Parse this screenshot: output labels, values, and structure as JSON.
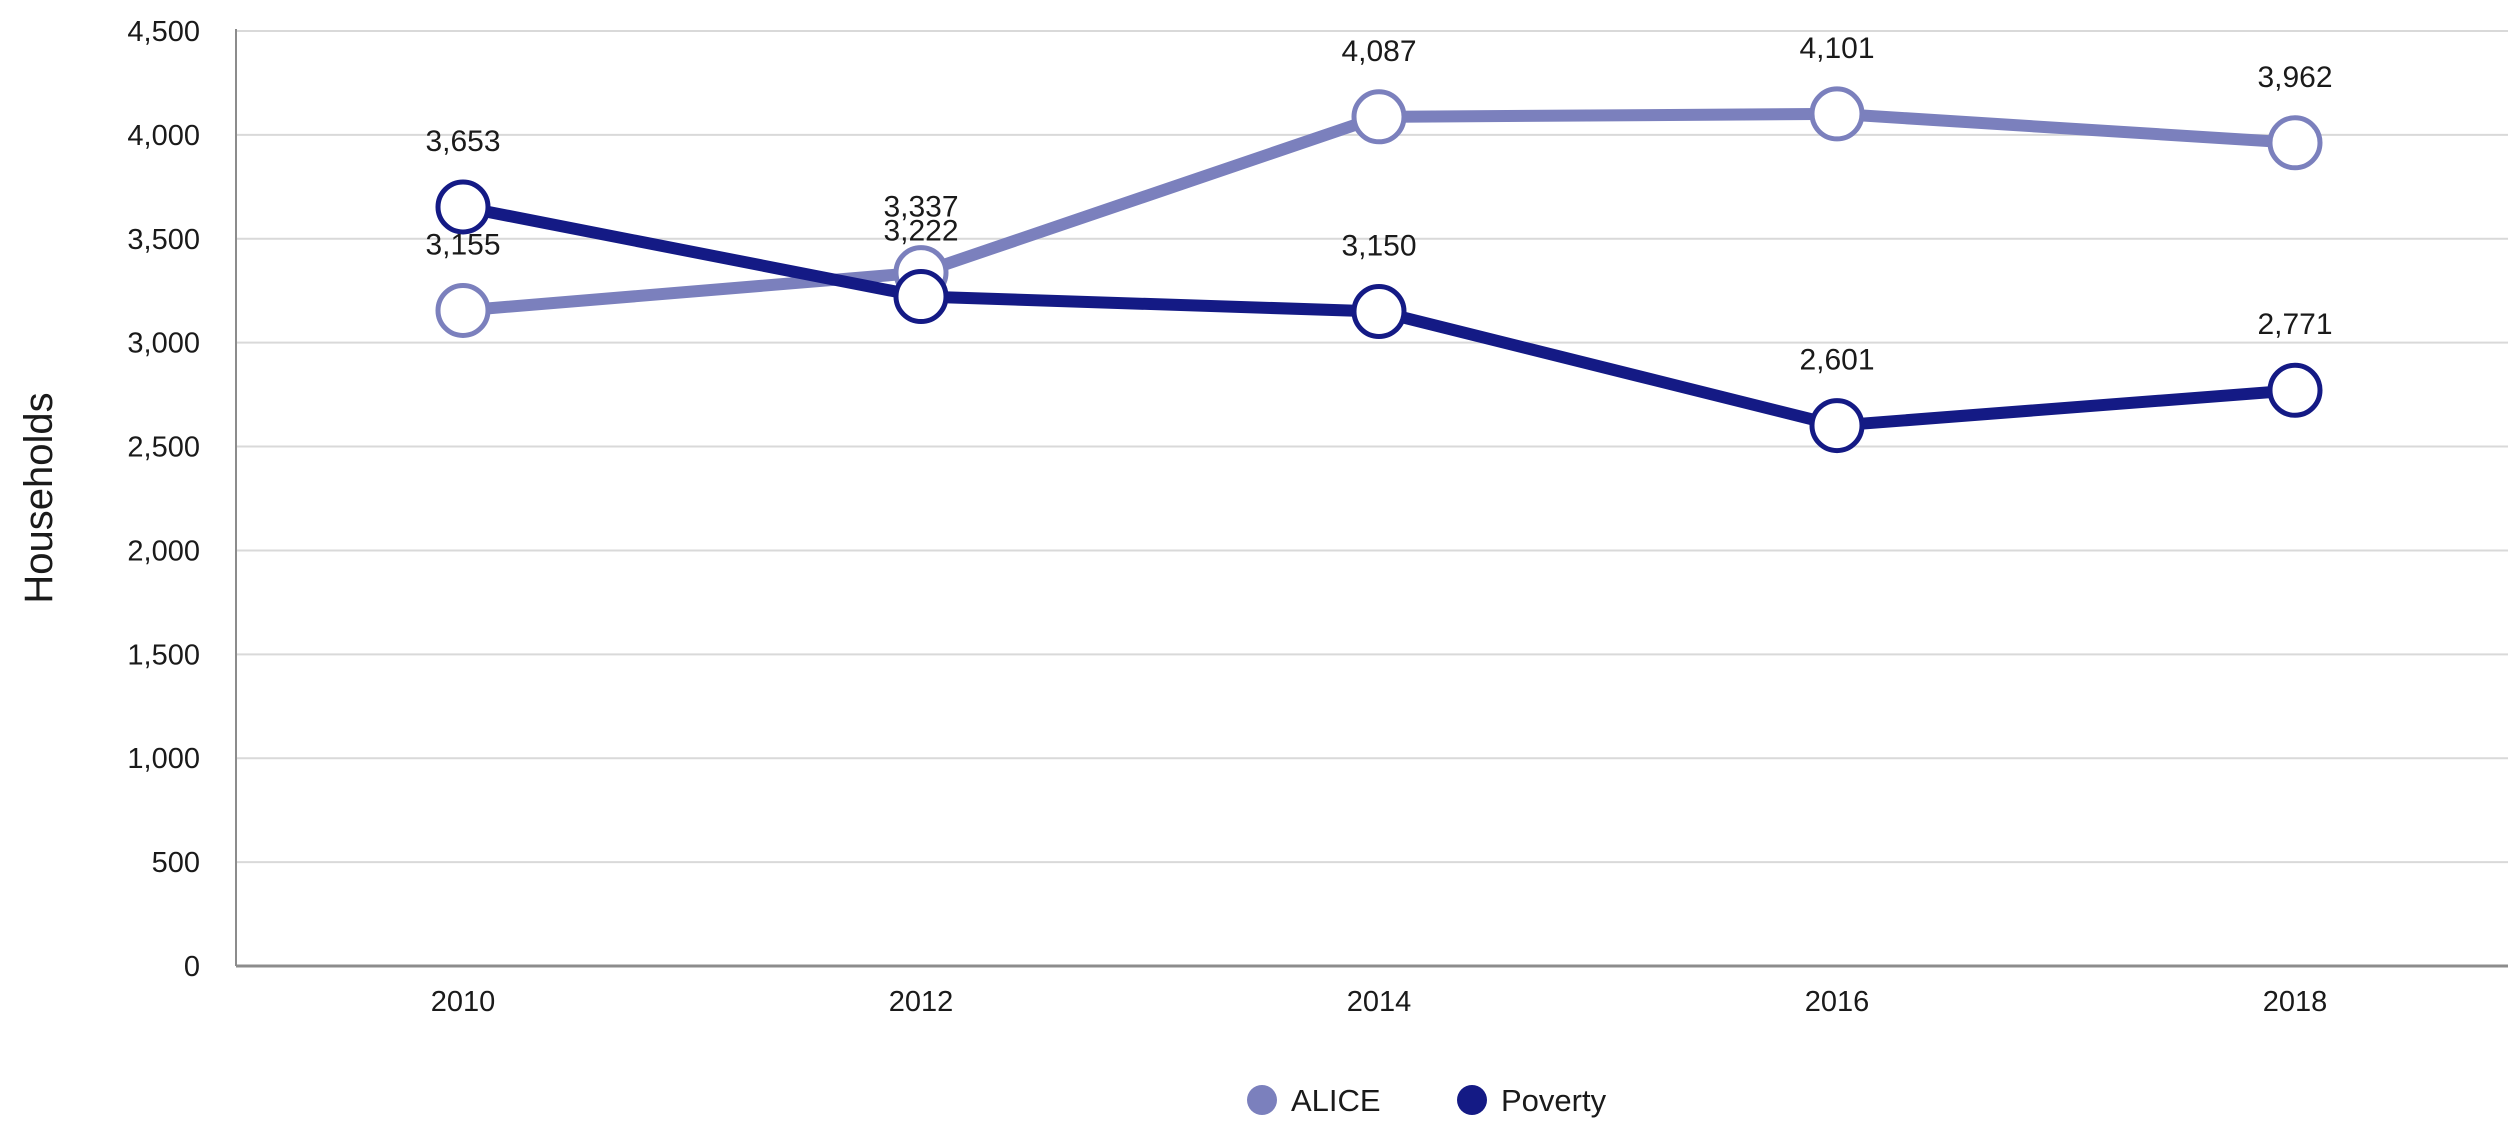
{
  "chart_data": {
    "type": "line",
    "title": "",
    "xlabel": "",
    "ylabel": "Households",
    "categories": [
      "2010",
      "2012",
      "2014",
      "2016",
      "2018"
    ],
    "ylim": [
      0,
      4500
    ],
    "yticks": [
      0,
      500,
      1000,
      1500,
      2000,
      2500,
      3000,
      3500,
      4000,
      4500
    ],
    "ytick_labels": [
      "0",
      "500",
      "1,000",
      "1,500",
      "2,000",
      "2,500",
      "3,000",
      "3,500",
      "4,000",
      "4,500"
    ],
    "grid": true,
    "legend_position": "bottom",
    "series": [
      {
        "name": "ALICE",
        "color": "#7b80bd",
        "values": [
          3155,
          3337,
          4087,
          4101,
          3962
        ],
        "labels": [
          "3,155",
          "3,337",
          "4,087",
          "4,101",
          "3,962"
        ]
      },
      {
        "name": "Poverty",
        "color": "#141a85",
        "values": [
          3653,
          3222,
          3150,
          2601,
          2771
        ],
        "labels": [
          "3,653",
          "3,222",
          "3,150",
          "2,601",
          "2,771"
        ]
      }
    ]
  }
}
